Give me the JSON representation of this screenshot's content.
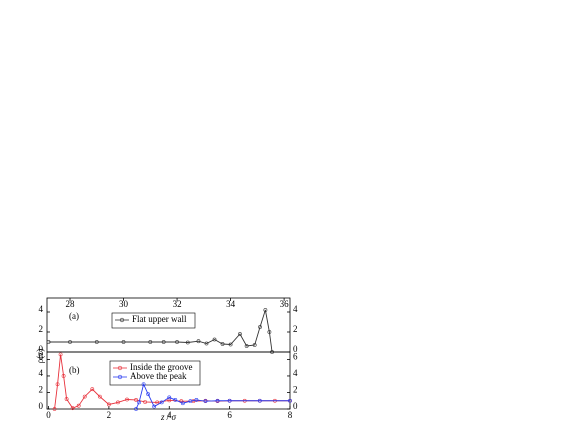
{
  "chart_data": [
    {
      "type": "line",
      "panel_label": "(a)",
      "ylabel": "ρ(z)",
      "xlim": [
        27.14,
        36.22
      ],
      "xticks": [
        28,
        30,
        32,
        34,
        36
      ],
      "xticks_side": "top",
      "ylim": [
        0,
        5.4
      ],
      "yticks": [
        0,
        2,
        4
      ],
      "series": [
        {
          "name": "Flat upper wall",
          "color": "#333333",
          "x": [
            27.2,
            28,
            29,
            30,
            31,
            31.5,
            32,
            32.4,
            32.8,
            33.1,
            33.4,
            33.7,
            34.0,
            34.35,
            34.6,
            34.9,
            35.1,
            35.3,
            35.45,
            35.55
          ],
          "values": [
            1,
            1,
            1,
            1,
            1,
            1,
            1,
            0.95,
            1.08,
            0.85,
            1.25,
            0.8,
            0.75,
            1.8,
            0.6,
            0.7,
            2.5,
            4.2,
            2.0,
            0
          ]
        }
      ]
    },
    {
      "type": "line",
      "panel_label": "(b)",
      "xlabel": "z / σ",
      "xlim": [
        -0.05,
        8.0
      ],
      "xticks": [
        0,
        2,
        4,
        6,
        8
      ],
      "xticks_side": "bottom",
      "ylim": [
        0,
        6.9
      ],
      "yticks": [
        0,
        2,
        4,
        6
      ],
      "series": [
        {
          "name": "Inside the groove",
          "color": "#e8323c",
          "x": [
            0.2,
            0.3,
            0.4,
            0.5,
            0.6,
            0.8,
            1.0,
            1.2,
            1.45,
            1.7,
            2.0,
            2.3,
            2.6,
            2.9,
            3.2,
            3.6,
            4.0,
            4.4,
            4.8,
            5.2,
            5.6,
            6.0,
            6.5,
            7.0,
            7.5,
            8.0
          ],
          "values": [
            0,
            3,
            6.6,
            4,
            1.2,
            0.1,
            0.4,
            1.5,
            2.4,
            1.5,
            0.55,
            0.8,
            1.15,
            1.1,
            0.85,
            0.8,
            1.05,
            0.95,
            0.95,
            1.0,
            0.95,
            1.0,
            1.0,
            1.0,
            1.0,
            1.0
          ]
        },
        {
          "name": "Above the peak",
          "color": "#2a3cf0",
          "x": [
            2.9,
            3.0,
            3.15,
            3.3,
            3.5,
            3.75,
            4.0,
            4.2,
            4.45,
            4.7,
            4.9,
            5.2,
            5.6,
            6.0,
            7.0,
            8.0
          ],
          "values": [
            0,
            0.8,
            3.0,
            1.8,
            0.3,
            0.8,
            1.4,
            1.1,
            0.7,
            0.95,
            1.1,
            0.95,
            1.0,
            1.0,
            1.0,
            1.0
          ]
        }
      ]
    }
  ]
}
